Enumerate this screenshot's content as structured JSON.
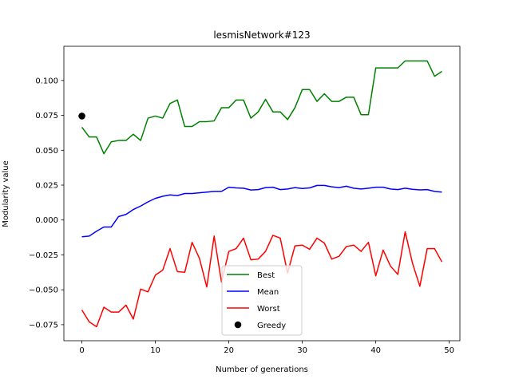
{
  "chart_data": {
    "type": "line",
    "title": "lesmisNetwork#123",
    "xlabel": "Number of generations",
    "ylabel": "Modularity value",
    "xlim": [
      -2.45,
      51.45
    ],
    "ylim": [
      -0.0865,
      0.1245
    ],
    "xticks": [
      0,
      10,
      20,
      30,
      40,
      50
    ],
    "xtick_labels": [
      "0",
      "10",
      "20",
      "30",
      "40",
      "50"
    ],
    "yticks": [
      -0.075,
      -0.05,
      -0.025,
      0.0,
      0.025,
      0.05,
      0.075,
      0.1
    ],
    "ytick_labels": [
      "−0.075",
      "−0.050",
      "−0.025",
      "0.000",
      "0.025",
      "0.050",
      "0.075",
      "0.100"
    ],
    "grid": false,
    "legend_position": "bottom-center",
    "x": [
      0,
      1,
      2,
      3,
      4,
      5,
      6,
      7,
      8,
      9,
      10,
      11,
      12,
      13,
      14,
      15,
      16,
      17,
      18,
      19,
      20,
      21,
      22,
      23,
      24,
      25,
      26,
      27,
      28,
      29,
      30,
      31,
      32,
      33,
      34,
      35,
      36,
      37,
      38,
      39,
      40,
      41,
      42,
      43,
      44,
      45,
      46,
      47,
      48,
      49
    ],
    "series": [
      {
        "name": "Best",
        "color": "#008000",
        "marker": "line",
        "values": [
          0.0665,
          0.0595,
          0.0595,
          0.0475,
          0.056,
          0.057,
          0.057,
          0.0615,
          0.057,
          0.073,
          0.0745,
          0.073,
          0.0835,
          0.086,
          0.067,
          0.067,
          0.0705,
          0.0705,
          0.071,
          0.0805,
          0.0805,
          0.086,
          0.086,
          0.073,
          0.0775,
          0.0865,
          0.0775,
          0.0775,
          0.072,
          0.0805,
          0.0935,
          0.0935,
          0.085,
          0.0905,
          0.085,
          0.085,
          0.088,
          0.088,
          0.0755,
          0.0755,
          0.109,
          0.109,
          0.109,
          0.109,
          0.114,
          0.114,
          0.114,
          0.114,
          0.103,
          0.1065
        ]
      },
      {
        "name": "Mean",
        "color": "#0000ff",
        "marker": "line",
        "values": [
          -0.012,
          -0.0115,
          -0.008,
          -0.005,
          -0.005,
          0.0025,
          0.004,
          0.0075,
          0.01,
          0.013,
          0.0155,
          0.017,
          0.018,
          0.0175,
          0.019,
          0.019,
          0.0195,
          0.02,
          0.0205,
          0.0205,
          0.0235,
          0.023,
          0.0228,
          0.0215,
          0.0218,
          0.0232,
          0.0235,
          0.0218,
          0.0222,
          0.0232,
          0.0226,
          0.023,
          0.0248,
          0.0248,
          0.0238,
          0.0232,
          0.0242,
          0.0228,
          0.0222,
          0.0228,
          0.0235,
          0.0235,
          0.0222,
          0.0218,
          0.0228,
          0.022,
          0.0216,
          0.0218,
          0.0205,
          0.02
        ]
      },
      {
        "name": "Worst",
        "color": "#ff0000",
        "marker": "line",
        "values": [
          -0.0645,
          -0.073,
          -0.0765,
          -0.0625,
          -0.066,
          -0.066,
          -0.061,
          -0.071,
          -0.0495,
          -0.0515,
          -0.0395,
          -0.036,
          -0.0205,
          -0.037,
          -0.0375,
          -0.016,
          -0.0275,
          -0.048,
          -0.0115,
          -0.0445,
          -0.0225,
          -0.0205,
          -0.013,
          -0.0285,
          -0.028,
          -0.0225,
          -0.011,
          -0.013,
          -0.038,
          -0.0185,
          -0.018,
          -0.021,
          -0.013,
          -0.0165,
          -0.028,
          -0.026,
          -0.019,
          -0.018,
          -0.0225,
          -0.016,
          -0.04,
          -0.0215,
          -0.033,
          -0.039,
          -0.0085,
          -0.031,
          -0.0475,
          -0.0205,
          -0.0205,
          -0.03
        ]
      },
      {
        "name": "Greedy",
        "color": "#000000",
        "marker": "dot",
        "points": [
          [
            0,
            0.0745
          ]
        ]
      }
    ]
  }
}
